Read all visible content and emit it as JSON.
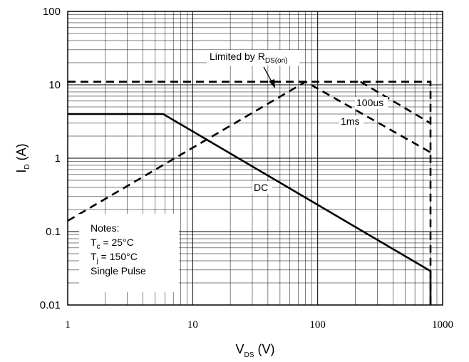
{
  "chart_data": {
    "type": "line",
    "x_scale": "log",
    "y_scale": "log",
    "xlim": [
      1,
      1000
    ],
    "ylim": [
      0.01,
      100
    ],
    "grid": true,
    "x_ticks": [
      "1",
      "10",
      "100",
      "1000"
    ],
    "y_ticks": [
      "0.01",
      "0.1",
      "1",
      "10",
      "100"
    ],
    "xlabel": {
      "main": "V",
      "sub": "DS",
      "unit": " (V)"
    },
    "ylabel": {
      "main": "I",
      "sub": "D",
      "unit": " (A)"
    },
    "series": [
      {
        "name": "DC",
        "style": "solid",
        "x": [
          1,
          5.8,
          800,
          800
        ],
        "y": [
          4,
          4,
          0.029,
          0.01
        ]
      },
      {
        "name": "1ms",
        "style": "dashed",
        "x": [
          1,
          80,
          800
        ],
        "y": [
          0.14,
          11,
          1.2
        ]
      },
      {
        "name": "100us",
        "style": "dashed",
        "x": [
          220,
          800
        ],
        "y": [
          11,
          3
        ]
      },
      {
        "name": "",
        "style": "dashed",
        "x": [
          1,
          800,
          800
        ],
        "y": [
          11,
          11,
          0.01
        ]
      }
    ],
    "annotations": {
      "rds_label": {
        "main": "Limited by R",
        "sub": "DS(on)"
      },
      "dc_label": "DC",
      "ms1_label": "1ms",
      "us100_label": "100us",
      "notes_title": "Notes:",
      "note_tc": {
        "main": "T",
        "sub": "c",
        "rest": " = 25°C"
      },
      "note_tj": {
        "main": "T",
        "sub": "j",
        "rest": " = 150°C"
      },
      "note_pulse": "Single Pulse"
    }
  }
}
